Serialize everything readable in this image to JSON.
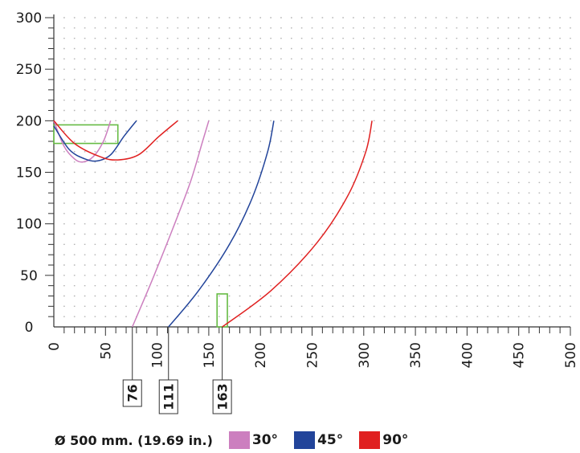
{
  "chart_data": {
    "type": "line",
    "title": "",
    "xlabel": "",
    "ylabel": "",
    "xlim": [
      0,
      500
    ],
    "ylim": [
      0,
      300
    ],
    "x_ticks": [
      0,
      50,
      100,
      150,
      200,
      250,
      300,
      350,
      400,
      450,
      500
    ],
    "y_ticks": [
      0,
      50,
      100,
      150,
      200,
      250,
      300
    ],
    "grid": "dotted",
    "series": [
      {
        "name": "30°",
        "color": "#cc7fbf",
        "low_curve": [
          [
            0,
            200
          ],
          [
            10,
            175
          ],
          [
            20,
            163
          ],
          [
            28,
            160
          ],
          [
            38,
            165
          ],
          [
            48,
            180
          ],
          [
            55,
            200
          ]
        ],
        "high_curve": [
          [
            76,
            0
          ],
          [
            95,
            45
          ],
          [
            115,
            95
          ],
          [
            132,
            140
          ],
          [
            144,
            180
          ],
          [
            150,
            200
          ]
        ]
      },
      {
        "name": "45°",
        "color": "#22449a",
        "low_curve": [
          [
            0,
            195
          ],
          [
            15,
            172
          ],
          [
            30,
            163
          ],
          [
            42,
            161
          ],
          [
            55,
            167
          ],
          [
            68,
            185
          ],
          [
            80,
            200
          ]
        ],
        "high_curve": [
          [
            111,
            0
          ],
          [
            140,
            35
          ],
          [
            170,
            80
          ],
          [
            192,
            125
          ],
          [
            207,
            170
          ],
          [
            213,
            200
          ]
        ]
      },
      {
        "name": "90°",
        "color": "#e02020",
        "low_curve": [
          [
            0,
            200
          ],
          [
            20,
            178
          ],
          [
            45,
            165
          ],
          [
            62,
            162
          ],
          [
            82,
            167
          ],
          [
            102,
            185
          ],
          [
            120,
            200
          ]
        ],
        "high_curve": [
          [
            163,
            0
          ],
          [
            210,
            35
          ],
          [
            255,
            82
          ],
          [
            285,
            128
          ],
          [
            302,
            170
          ],
          [
            308,
            200
          ]
        ]
      }
    ],
    "markers": [
      {
        "x": 76,
        "label": "76"
      },
      {
        "x": 111,
        "label": "111"
      },
      {
        "x": 163,
        "label": "163"
      }
    ],
    "highlight_boxes": [
      {
        "x0": 0,
        "x1": 62,
        "y0": 178,
        "y1": 196,
        "color": "#66bb44"
      },
      {
        "x0": 158,
        "x1": 168,
        "y0": 0,
        "y1": 32,
        "color": "#66bb44"
      }
    ],
    "legend": {
      "title": "Ø 500 mm. (19.69 in.)",
      "placement": "bottom-left"
    }
  }
}
